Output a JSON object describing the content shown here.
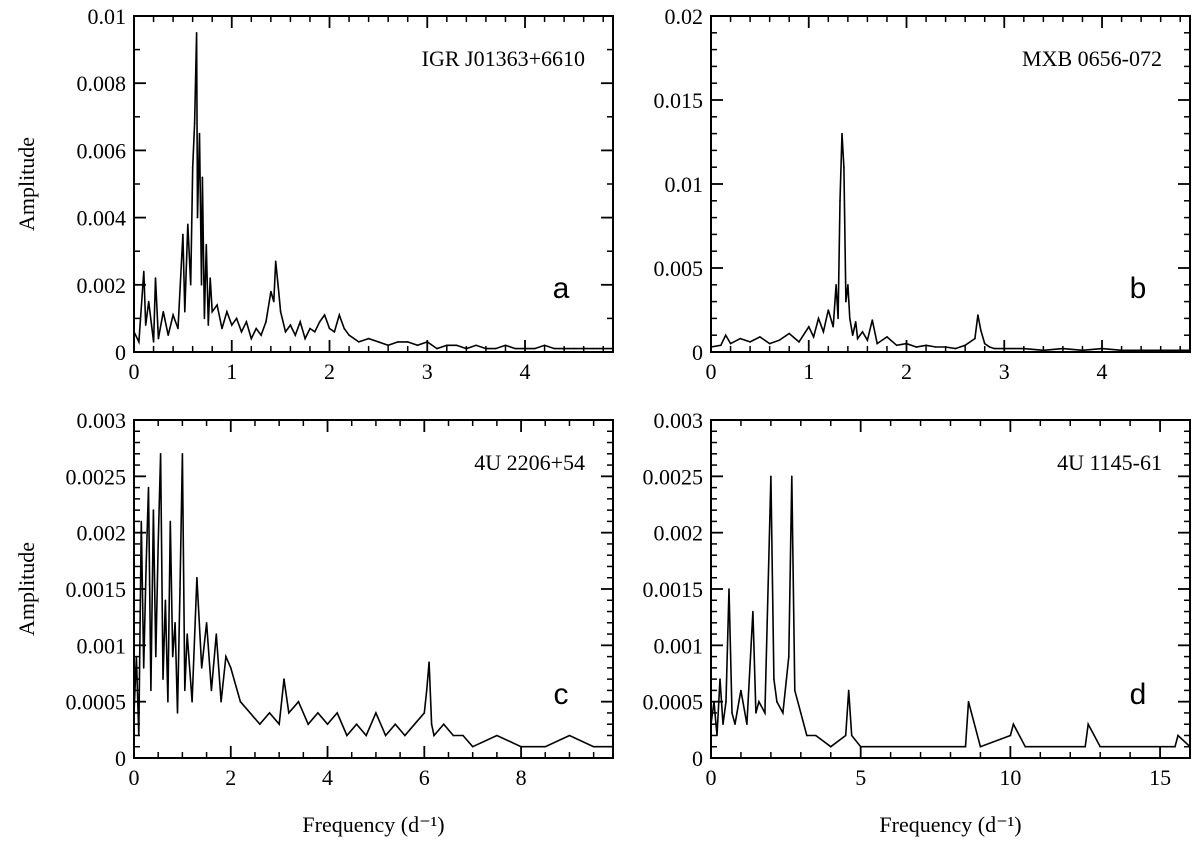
{
  "figure": {
    "background": "#ffffff",
    "line_color": "#000000"
  },
  "chart_data": [
    {
      "type": "line",
      "title": "IGR J01363+6610",
      "panel_label": "a",
      "xlabel": "",
      "ylabel": "Amplitude",
      "xlim": [
        0,
        4.9
      ],
      "ylim": [
        0,
        0.01
      ],
      "xticks": [
        0,
        1,
        2,
        3,
        4
      ],
      "xtick_labels": [
        "0",
        "1",
        "2",
        "3",
        "4"
      ],
      "xminor": 0.2,
      "yticks": [
        0,
        0.002,
        0.004,
        0.006,
        0.008,
        0.01
      ],
      "ytick_labels": [
        "0",
        "0.002",
        "0.004",
        "0.006",
        "0.008",
        "0.01"
      ],
      "yminor": 0.001,
      "grid": false,
      "series": [
        {
          "x": [
            0.0,
            0.05,
            0.1,
            0.12,
            0.15,
            0.2,
            0.22,
            0.25,
            0.3,
            0.35,
            0.4,
            0.45,
            0.5,
            0.52,
            0.55,
            0.58,
            0.6,
            0.62,
            0.64,
            0.65,
            0.67,
            0.69,
            0.7,
            0.72,
            0.74,
            0.76,
            0.78,
            0.8,
            0.85,
            0.9,
            0.95,
            1.0,
            1.05,
            1.1,
            1.15,
            1.2,
            1.25,
            1.3,
            1.35,
            1.4,
            1.43,
            1.45,
            1.48,
            1.5,
            1.55,
            1.6,
            1.65,
            1.7,
            1.75,
            1.8,
            1.85,
            1.9,
            1.95,
            2.0,
            2.05,
            2.1,
            2.15,
            2.2,
            2.3,
            2.4,
            2.5,
            2.6,
            2.7,
            2.8,
            2.9,
            3.0,
            3.1,
            3.2,
            3.3,
            3.4,
            3.5,
            3.6,
            3.7,
            3.8,
            3.9,
            4.0,
            4.1,
            4.2,
            4.3,
            4.4,
            4.5,
            4.6,
            4.7,
            4.8,
            4.9
          ],
          "y": [
            0.0006,
            0.0003,
            0.0024,
            0.0008,
            0.0015,
            0.0003,
            0.0022,
            0.0004,
            0.0012,
            0.0005,
            0.0011,
            0.0007,
            0.0035,
            0.0012,
            0.0038,
            0.002,
            0.0055,
            0.0068,
            0.0095,
            0.004,
            0.0065,
            0.002,
            0.0052,
            0.001,
            0.0032,
            0.0008,
            0.0022,
            0.0012,
            0.0014,
            0.0007,
            0.0012,
            0.0008,
            0.001,
            0.0006,
            0.0009,
            0.0004,
            0.0007,
            0.0005,
            0.0009,
            0.0018,
            0.0015,
            0.0027,
            0.0018,
            0.0012,
            0.0006,
            0.0008,
            0.0005,
            0.0009,
            0.0004,
            0.0007,
            0.0006,
            0.0009,
            0.0011,
            0.0007,
            0.0006,
            0.0011,
            0.0007,
            0.0005,
            0.0003,
            0.0004,
            0.0003,
            0.0002,
            0.0003,
            0.0003,
            0.0002,
            0.0003,
            0.0001,
            0.0002,
            0.0002,
            0.0001,
            0.0002,
            0.0001,
            0.0001,
            0.0002,
            0.0001,
            0.0001,
            0.0001,
            0.0002,
            0.0001,
            0.0001,
            0.0001,
            0.0001,
            0.0001,
            0.0001,
            0.0001
          ]
        }
      ]
    },
    {
      "type": "line",
      "title": "MXB 0656-072",
      "panel_label": "b",
      "xlabel": "",
      "ylabel": "",
      "xlim": [
        0,
        4.9
      ],
      "ylim": [
        0,
        0.02
      ],
      "xticks": [
        0,
        1,
        2,
        3,
        4
      ],
      "xtick_labels": [
        "0",
        "1",
        "2",
        "3",
        "4"
      ],
      "xminor": 0.2,
      "yticks": [
        0,
        0.005,
        0.01,
        0.015,
        0.02
      ],
      "ytick_labels": [
        "0",
        "0.005",
        "0.01",
        "0.015",
        "0.02"
      ],
      "yminor": 0.001,
      "grid": false,
      "series": [
        {
          "x": [
            0.0,
            0.1,
            0.15,
            0.2,
            0.3,
            0.4,
            0.5,
            0.6,
            0.7,
            0.8,
            0.9,
            1.0,
            1.05,
            1.1,
            1.15,
            1.2,
            1.25,
            1.28,
            1.3,
            1.32,
            1.34,
            1.36,
            1.38,
            1.4,
            1.42,
            1.45,
            1.48,
            1.5,
            1.55,
            1.6,
            1.65,
            1.7,
            1.8,
            1.9,
            2.0,
            2.1,
            2.2,
            2.3,
            2.4,
            2.5,
            2.6,
            2.7,
            2.73,
            2.76,
            2.8,
            2.85,
            2.9,
            3.0,
            3.2,
            3.4,
            3.6,
            3.8,
            4.0,
            4.2,
            4.4,
            4.6,
            4.8,
            4.9
          ],
          "y": [
            0.0003,
            0.0004,
            0.001,
            0.0005,
            0.0008,
            0.0006,
            0.0009,
            0.0005,
            0.0007,
            0.0011,
            0.0006,
            0.0015,
            0.0009,
            0.002,
            0.0012,
            0.0025,
            0.0015,
            0.004,
            0.002,
            0.009,
            0.013,
            0.011,
            0.003,
            0.004,
            0.002,
            0.001,
            0.0018,
            0.0008,
            0.0012,
            0.0007,
            0.0019,
            0.0005,
            0.0009,
            0.0004,
            0.0005,
            0.0003,
            0.0004,
            0.0003,
            0.0003,
            0.0002,
            0.0004,
            0.0008,
            0.0022,
            0.0013,
            0.0005,
            0.0003,
            0.0002,
            0.0002,
            0.0002,
            0.0001,
            0.0002,
            0.0001,
            0.0002,
            0.0001,
            0.0001,
            0.0001,
            0.0001,
            0.0001
          ]
        }
      ]
    },
    {
      "type": "line",
      "title": "4U 2206+54",
      "panel_label": "c",
      "xlabel": "Frequency (d⁻¹)",
      "ylabel": "Amplitude",
      "xlim": [
        0,
        9.9
      ],
      "ylim": [
        0,
        0.003
      ],
      "xticks": [
        0,
        2,
        4,
        6,
        8
      ],
      "xtick_labels": [
        "0",
        "2",
        "4",
        "6",
        "8"
      ],
      "xminor": 0.5,
      "yticks": [
        0,
        0.0005,
        0.001,
        0.0015,
        0.002,
        0.0025,
        0.003
      ],
      "ytick_labels": [
        "0",
        "0.0005",
        "0.001",
        "0.0015",
        "0.002",
        "0.0025",
        "0.003"
      ],
      "yminor": 0.0001,
      "grid": false,
      "series": [
        {
          "x": [
            0.0,
            0.05,
            0.1,
            0.15,
            0.2,
            0.25,
            0.3,
            0.35,
            0.4,
            0.45,
            0.5,
            0.55,
            0.6,
            0.65,
            0.7,
            0.75,
            0.8,
            0.85,
            0.9,
            0.95,
            1.0,
            1.05,
            1.1,
            1.2,
            1.3,
            1.4,
            1.5,
            1.6,
            1.7,
            1.8,
            1.9,
            2.0,
            2.2,
            2.4,
            2.6,
            2.8,
            3.0,
            3.1,
            3.2,
            3.4,
            3.6,
            3.8,
            4.0,
            4.2,
            4.4,
            4.6,
            4.8,
            5.0,
            5.2,
            5.4,
            5.6,
            5.8,
            6.0,
            6.05,
            6.1,
            6.15,
            6.2,
            6.4,
            6.6,
            6.8,
            7.0,
            7.5,
            8.0,
            8.5,
            9.0,
            9.5,
            9.9
          ],
          "y": [
            0.0004,
            0.0009,
            0.0002,
            0.0021,
            0.0008,
            0.0017,
            0.0024,
            0.0006,
            0.0022,
            0.0009,
            0.0019,
            0.0027,
            0.0007,
            0.0014,
            0.0005,
            0.0021,
            0.0009,
            0.0012,
            0.0004,
            0.0015,
            0.0027,
            0.0006,
            0.0011,
            0.0005,
            0.0016,
            0.0008,
            0.0012,
            0.0006,
            0.0011,
            0.0005,
            0.0009,
            0.0008,
            0.0005,
            0.0004,
            0.0003,
            0.0004,
            0.0003,
            0.0007,
            0.0004,
            0.0005,
            0.0003,
            0.0004,
            0.0003,
            0.0004,
            0.0002,
            0.0003,
            0.0002,
            0.0004,
            0.0002,
            0.0003,
            0.0002,
            0.0003,
            0.0004,
            0.0006,
            0.00085,
            0.0003,
            0.0002,
            0.0003,
            0.0002,
            0.0002,
            0.0001,
            0.0002,
            0.0001,
            0.0001,
            0.0002,
            0.0001,
            0.0001
          ]
        }
      ]
    },
    {
      "type": "line",
      "title": "4U 1145-61",
      "panel_label": "d",
      "xlabel": "Frequency (d⁻¹)",
      "ylabel": "",
      "xlim": [
        0,
        16
      ],
      "ylim": [
        0,
        0.003
      ],
      "xticks": [
        0,
        5,
        10,
        15
      ],
      "xtick_labels": [
        "0",
        "5",
        "10",
        "15"
      ],
      "xminor": 1,
      "yticks": [
        0,
        0.0005,
        0.001,
        0.0015,
        0.002,
        0.0025,
        0.003
      ],
      "ytick_labels": [
        "0",
        "0.0005",
        "0.001",
        "0.0015",
        "0.002",
        "0.0025",
        "0.003"
      ],
      "yminor": 0.0001,
      "grid": false,
      "series": [
        {
          "x": [
            0.0,
            0.1,
            0.2,
            0.3,
            0.4,
            0.5,
            0.6,
            0.7,
            0.8,
            1.0,
            1.2,
            1.4,
            1.5,
            1.6,
            1.8,
            2.0,
            2.1,
            2.2,
            2.4,
            2.6,
            2.7,
            2.8,
            3.0,
            3.2,
            3.5,
            4.0,
            4.5,
            4.6,
            4.7,
            5.0,
            5.5,
            6.0,
            7.0,
            8.0,
            8.5,
            8.6,
            9.0,
            10.0,
            10.1,
            10.5,
            11.0,
            12.0,
            12.5,
            12.6,
            13.0,
            14.0,
            15.0,
            15.5,
            15.6,
            16.0
          ],
          "y": [
            0.0003,
            0.0005,
            0.0002,
            0.0007,
            0.0003,
            0.0005,
            0.0015,
            0.0004,
            0.0003,
            0.0006,
            0.0003,
            0.0013,
            0.0004,
            0.0005,
            0.0004,
            0.0025,
            0.0007,
            0.0005,
            0.0004,
            0.0009,
            0.0025,
            0.0006,
            0.0004,
            0.0002,
            0.0002,
            0.0001,
            0.0002,
            0.0006,
            0.0002,
            0.0001,
            0.0001,
            0.0001,
            0.0001,
            0.0001,
            0.0001,
            0.0005,
            0.0001,
            0.0002,
            0.0003,
            0.0001,
            0.0001,
            0.0001,
            0.0001,
            0.0003,
            0.0001,
            0.0001,
            0.0001,
            0.0001,
            0.0002,
            0.0001
          ]
        }
      ]
    }
  ]
}
